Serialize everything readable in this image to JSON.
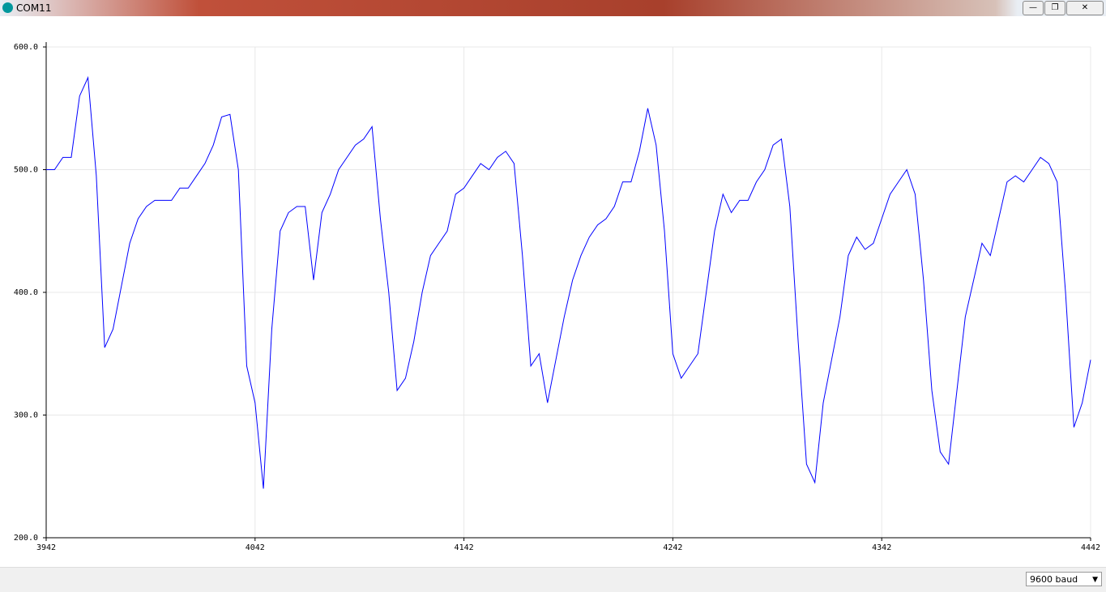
{
  "window": {
    "title": "COM11",
    "baud": "9600 baud"
  },
  "chart_data": {
    "type": "line",
    "color": "#0000ff",
    "grid": true,
    "x": [
      3942,
      3946,
      3950,
      3954,
      3958,
      3962,
      3966,
      3970,
      3974,
      3978,
      3982,
      3986,
      3990,
      3994,
      3998,
      4002,
      4006,
      4010,
      4014,
      4018,
      4022,
      4026,
      4030,
      4034,
      4038,
      4042,
      4046,
      4050,
      4054,
      4058,
      4062,
      4066,
      4070,
      4074,
      4078,
      4082,
      4086,
      4090,
      4094,
      4098,
      4102,
      4106,
      4110,
      4114,
      4118,
      4122,
      4126,
      4130,
      4134,
      4138,
      4142,
      4146,
      4150,
      4154,
      4158,
      4162,
      4166,
      4170,
      4174,
      4178,
      4182,
      4186,
      4190,
      4194,
      4198,
      4202,
      4206,
      4210,
      4214,
      4218,
      4222,
      4226,
      4230,
      4234,
      4238,
      4242,
      4246,
      4250,
      4254,
      4258,
      4262,
      4266,
      4270,
      4274,
      4278,
      4282,
      4286,
      4290,
      4294,
      4298,
      4302,
      4306,
      4310,
      4314,
      4318,
      4322,
      4326,
      4330,
      4334,
      4338,
      4342,
      4346,
      4350,
      4354,
      4358,
      4362,
      4366,
      4370,
      4374,
      4378,
      4382,
      4386,
      4390,
      4394,
      4398,
      4402,
      4406,
      4410,
      4414,
      4418,
      4422,
      4426,
      4430,
      4434,
      4438,
      4442
    ],
    "values": [
      500,
      500,
      510,
      510,
      560,
      575,
      495,
      355,
      370,
      405,
      440,
      460,
      470,
      475,
      475,
      475,
      485,
      485,
      495,
      505,
      520,
      543,
      545,
      500,
      340,
      310,
      240,
      370,
      450,
      465,
      470,
      470,
      410,
      465,
      480,
      500,
      510,
      520,
      525,
      535,
      460,
      400,
      320,
      330,
      360,
      400,
      430,
      440,
      450,
      480,
      485,
      495,
      505,
      500,
      510,
      515,
      505,
      430,
      340,
      350,
      310,
      345,
      380,
      410,
      430,
      445,
      455,
      460,
      470,
      490,
      490,
      515,
      550,
      520,
      450,
      350,
      330,
      340,
      350,
      400,
      450,
      480,
      465,
      475,
      475,
      490,
      500,
      520,
      525,
      470,
      360,
      260,
      245,
      310,
      345,
      380,
      430,
      445,
      435,
      440,
      460,
      480,
      490,
      500,
      480,
      410,
      320,
      270,
      260,
      320,
      380,
      410,
      440,
      430,
      460,
      490,
      495,
      490,
      500,
      510,
      505,
      490,
      400,
      290,
      310,
      345
    ],
    "xlim": [
      3942,
      4442
    ],
    "xticks": [
      3942,
      4042,
      4142,
      4242,
      4342,
      4442
    ],
    "ylim": [
      200,
      600
    ],
    "yticks": [
      {
        "value": 200,
        "label": "200.0"
      },
      {
        "value": 300,
        "label": "300.0"
      },
      {
        "value": 400,
        "label": "400.0"
      },
      {
        "value": 500,
        "label": "500.0"
      },
      {
        "value": 600,
        "label": "600.0"
      }
    ]
  }
}
